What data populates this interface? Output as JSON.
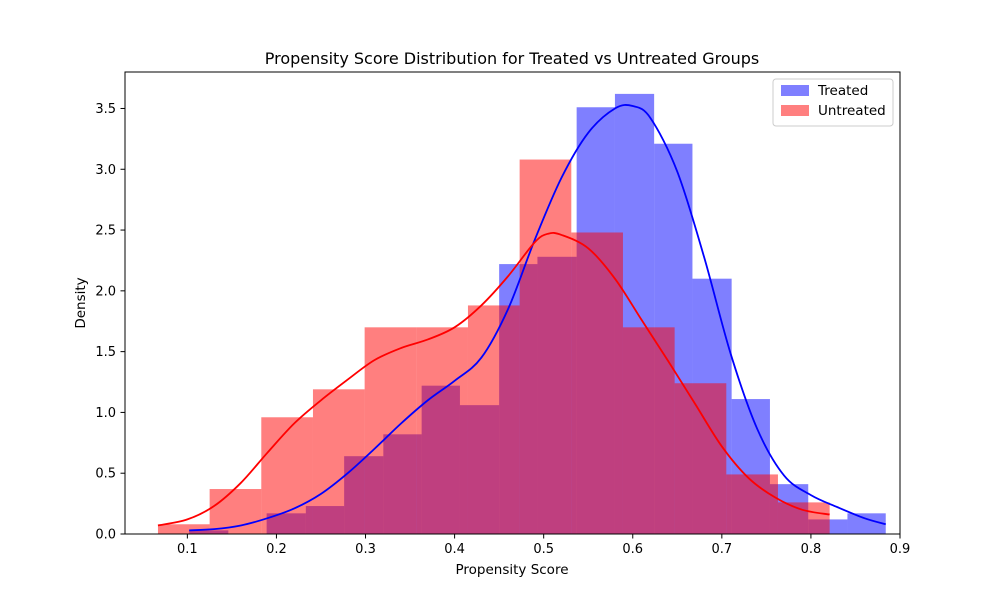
{
  "chart_data": {
    "type": "histogram-kde",
    "title": "Propensity Score Distribution for Treated vs Untreated Groups",
    "xlabel": "Propensity Score",
    "ylabel": "Density",
    "xlim": [
      0.03,
      0.9
    ],
    "ylim": [
      0,
      3.8
    ],
    "xticks": [
      "0.1",
      "0.2",
      "0.3",
      "0.4",
      "0.5",
      "0.6",
      "0.7",
      "0.8",
      "0.9"
    ],
    "yticks": [
      "0.0",
      "0.5",
      "1.0",
      "1.5",
      "2.0",
      "2.5",
      "3.0",
      "3.5"
    ],
    "grid": false,
    "legend_position": "top-right",
    "series": [
      {
        "name": "Treated",
        "color": "#0000ff",
        "bins": [
          {
            "x0": 0.102,
            "x1": 0.146,
            "y": 0.03
          },
          {
            "x0": 0.146,
            "x1": 0.189,
            "y": 0.0
          },
          {
            "x0": 0.189,
            "x1": 0.233,
            "y": 0.17
          },
          {
            "x0": 0.233,
            "x1": 0.276,
            "y": 0.23
          },
          {
            "x0": 0.276,
            "x1": 0.32,
            "y": 0.64
          },
          {
            "x0": 0.32,
            "x1": 0.363,
            "y": 0.82
          },
          {
            "x0": 0.363,
            "x1": 0.406,
            "y": 1.22
          },
          {
            "x0": 0.406,
            "x1": 0.45,
            "y": 1.06
          },
          {
            "x0": 0.45,
            "x1": 0.493,
            "y": 2.22
          },
          {
            "x0": 0.493,
            "x1": 0.537,
            "y": 2.28
          },
          {
            "x0": 0.537,
            "x1": 0.58,
            "y": 3.51
          },
          {
            "x0": 0.58,
            "x1": 0.624,
            "y": 3.62
          },
          {
            "x0": 0.624,
            "x1": 0.667,
            "y": 3.21
          },
          {
            "x0": 0.667,
            "x1": 0.711,
            "y": 2.1
          },
          {
            "x0": 0.711,
            "x1": 0.754,
            "y": 1.11
          },
          {
            "x0": 0.754,
            "x1": 0.797,
            "y": 0.41
          },
          {
            "x0": 0.797,
            "x1": 0.841,
            "y": 0.12
          },
          {
            "x0": 0.841,
            "x1": 0.884,
            "y": 0.17
          }
        ],
        "kde": {
          "x": [
            0.102,
            0.13,
            0.16,
            0.19,
            0.22,
            0.25,
            0.28,
            0.31,
            0.34,
            0.37,
            0.4,
            0.43,
            0.46,
            0.49,
            0.52,
            0.55,
            0.58,
            0.6,
            0.62,
            0.65,
            0.68,
            0.71,
            0.74,
            0.77,
            0.8,
            0.83,
            0.86,
            0.884
          ],
          "y": [
            0.03,
            0.04,
            0.07,
            0.13,
            0.21,
            0.33,
            0.5,
            0.7,
            0.91,
            1.1,
            1.26,
            1.45,
            1.85,
            2.42,
            2.93,
            3.3,
            3.5,
            3.52,
            3.42,
            2.98,
            2.28,
            1.48,
            0.86,
            0.48,
            0.32,
            0.22,
            0.13,
            0.08
          ]
        }
      },
      {
        "name": "Untreated",
        "color": "#ff0000",
        "bins": [
          {
            "x0": 0.067,
            "x1": 0.125,
            "y": 0.08
          },
          {
            "x0": 0.125,
            "x1": 0.183,
            "y": 0.37
          },
          {
            "x0": 0.183,
            "x1": 0.241,
            "y": 0.96
          },
          {
            "x0": 0.241,
            "x1": 0.299,
            "y": 1.19
          },
          {
            "x0": 0.299,
            "x1": 0.357,
            "y": 1.7
          },
          {
            "x0": 0.357,
            "x1": 0.415,
            "y": 1.7
          },
          {
            "x0": 0.415,
            "x1": 0.473,
            "y": 1.88
          },
          {
            "x0": 0.473,
            "x1": 0.531,
            "y": 3.08
          },
          {
            "x0": 0.531,
            "x1": 0.589,
            "y": 2.48
          },
          {
            "x0": 0.589,
            "x1": 0.647,
            "y": 1.7
          },
          {
            "x0": 0.647,
            "x1": 0.705,
            "y": 1.24
          },
          {
            "x0": 0.705,
            "x1": 0.763,
            "y": 0.49
          },
          {
            "x0": 0.763,
            "x1": 0.821,
            "y": 0.26
          }
        ],
        "kde": {
          "x": [
            0.067,
            0.1,
            0.13,
            0.16,
            0.19,
            0.22,
            0.25,
            0.28,
            0.31,
            0.34,
            0.37,
            0.4,
            0.43,
            0.46,
            0.49,
            0.505,
            0.52,
            0.55,
            0.58,
            0.61,
            0.64,
            0.67,
            0.7,
            0.73,
            0.76,
            0.79,
            0.821
          ],
          "y": [
            0.07,
            0.12,
            0.23,
            0.42,
            0.67,
            0.91,
            1.1,
            1.27,
            1.43,
            1.53,
            1.6,
            1.7,
            1.88,
            2.12,
            2.4,
            2.47,
            2.46,
            2.35,
            2.1,
            1.76,
            1.42,
            1.07,
            0.72,
            0.46,
            0.3,
            0.2,
            0.16
          ]
        }
      }
    ]
  }
}
